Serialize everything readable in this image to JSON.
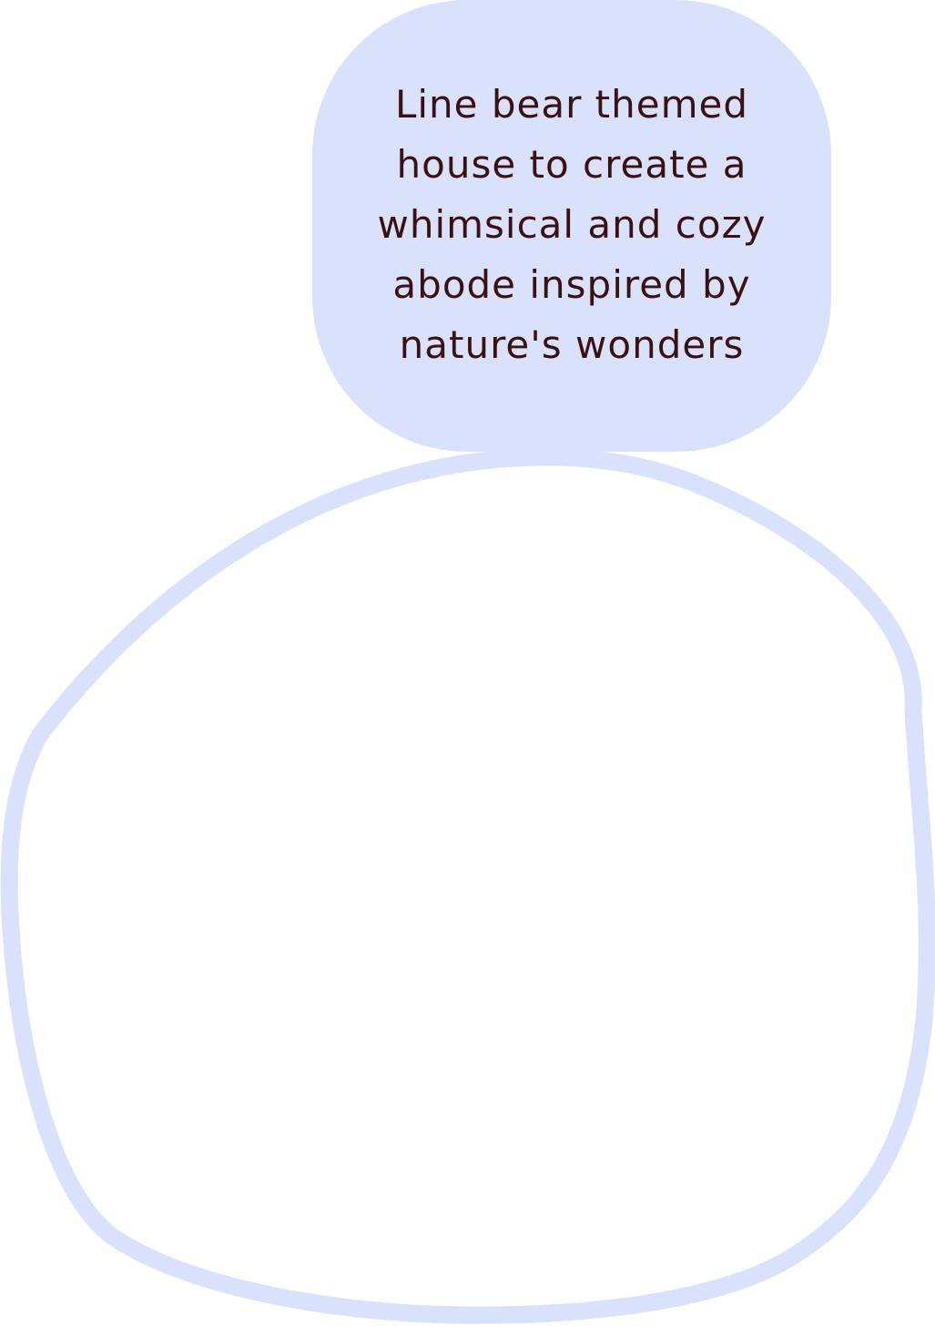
{
  "caption": {
    "text": "Line bear themed house to create a whimsical and cozy abode inspired by nature's wonders"
  },
  "colors": {
    "bubble_fill": "#d9e1fc",
    "outline_stroke": "#d9e1fc",
    "text": "#3b1010",
    "background": "#ffffff"
  }
}
